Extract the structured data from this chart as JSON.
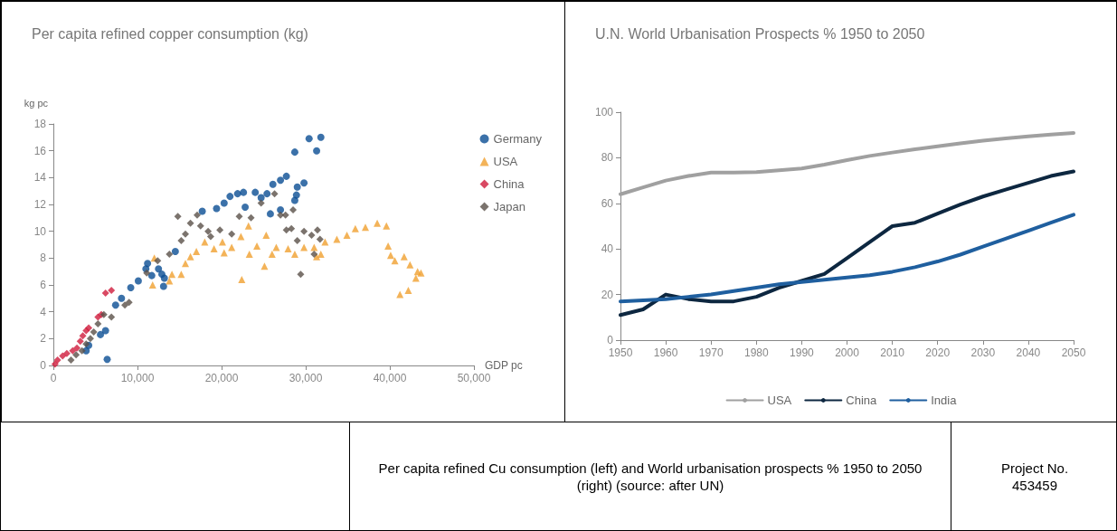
{
  "chart_data": [
    {
      "type": "scatter",
      "title": "Per capita refined copper consumption (kg)",
      "ylabel": "kg pc",
      "xlabel": "GDP pc",
      "xlim": [
        0,
        50000
      ],
      "xticks": [
        {
          "value": 0,
          "label": "0"
        },
        {
          "value": 10000,
          "label": "10,000"
        },
        {
          "value": 20000,
          "label": "20,000"
        },
        {
          "value": 30000,
          "label": "30,000"
        },
        {
          "value": 40000,
          "label": "40,000"
        },
        {
          "value": 50000,
          "label": "50,000"
        }
      ],
      "ylim": [
        0,
        18
      ],
      "yticks": [
        0,
        2,
        4,
        6,
        8,
        10,
        12,
        14,
        16,
        18
      ],
      "legend": "top right",
      "series": [
        {
          "name": "Germany",
          "color": "#0a4d94",
          "marker": "circle",
          "x": [
            3900,
            4200,
            6400,
            6200,
            5600,
            7400,
            8100,
            9200,
            10100,
            11000,
            11200,
            11700,
            12500,
            12900,
            13100,
            13200,
            14500,
            17700,
            19400,
            20300,
            21000,
            21900,
            22600,
            22800,
            24000,
            24700,
            25400,
            25800,
            26100,
            27000,
            27700,
            28700,
            29000,
            29800,
            28700,
            30400,
            31300,
            31800,
            28900,
            27000
          ],
          "values": [
            1.1,
            1.5,
            0.45,
            2.6,
            2.3,
            4.5,
            5.0,
            5.8,
            6.3,
            7.2,
            7.6,
            6.7,
            7.2,
            6.8,
            5.9,
            6.5,
            8.5,
            11.5,
            11.7,
            12.1,
            12.6,
            12.8,
            12.9,
            11.8,
            12.9,
            12.5,
            12.8,
            11.3,
            13.5,
            13.8,
            14.1,
            12.3,
            13.3,
            13.6,
            15.9,
            16.9,
            16.0,
            17.0,
            12.7,
            11.6
          ]
        },
        {
          "name": "USA",
          "color": "#f0a030",
          "marker": "triangle",
          "x": [
            11800,
            12000,
            13800,
            14100,
            15200,
            15700,
            16300,
            17000,
            18000,
            19100,
            20100,
            20300,
            21200,
            22300,
            22400,
            23200,
            23300,
            24200,
            25100,
            25300,
            26000,
            26500,
            27900,
            28700,
            29800,
            31000,
            31300,
            31800,
            32300,
            33700,
            34900,
            35900,
            37100,
            38500,
            39600,
            39800,
            40100,
            40600,
            41700,
            42400,
            43300,
            43700,
            43100,
            41200,
            42200
          ],
          "values": [
            6.0,
            8.0,
            6.3,
            6.8,
            6.8,
            7.6,
            8.1,
            8.5,
            9.2,
            8.7,
            9.2,
            8.4,
            8.8,
            9.6,
            6.4,
            10.4,
            8.3,
            8.9,
            7.4,
            9.7,
            8.3,
            8.8,
            8.7,
            8.3,
            8.8,
            8.8,
            8.1,
            8.3,
            9.2,
            9.4,
            9.7,
            10.2,
            10.3,
            10.6,
            10.4,
            8.9,
            8.2,
            7.8,
            8.1,
            7.5,
            7.0,
            6.9,
            6.5,
            5.3,
            5.6
          ]
        },
        {
          "name": "China",
          "color": "#d01c3c",
          "marker": "diamond",
          "x": [
            200,
            500,
            1100,
            1600,
            2300,
            2800,
            3200,
            3500,
            3900,
            4200,
            5300,
            5700,
            6200,
            6900
          ],
          "values": [
            0.1,
            0.4,
            0.7,
            0.9,
            1.1,
            1.3,
            1.8,
            2.2,
            2.6,
            2.8,
            3.6,
            3.8,
            5.4,
            5.6
          ]
        },
        {
          "name": "Japan",
          "color": "#5a5048",
          "marker": "diamond",
          "x": [
            2100,
            2700,
            3400,
            3900,
            4400,
            4800,
            5300,
            6000,
            6900,
            8500,
            9000,
            11100,
            12400,
            13800,
            14800,
            15200,
            15700,
            16300,
            17100,
            17500,
            18400,
            18700,
            19800,
            21200,
            22100,
            23500,
            24700,
            26300,
            27000,
            27700,
            27600,
            28300,
            28500,
            29000,
            29800,
            30700,
            31000,
            31400,
            31700,
            29400
          ],
          "values": [
            0.4,
            0.8,
            1.1,
            1.6,
            2.0,
            2.5,
            3.1,
            3.8,
            3.6,
            4.5,
            4.7,
            6.9,
            7.8,
            8.3,
            11.1,
            9.3,
            9.8,
            10.6,
            11.2,
            10.4,
            10.0,
            9.6,
            10.1,
            9.8,
            11.1,
            11.0,
            12.1,
            12.8,
            11.2,
            10.1,
            11.2,
            10.2,
            11.6,
            9.3,
            10.0,
            9.7,
            8.3,
            10.1,
            9.4,
            6.8
          ]
        }
      ]
    },
    {
      "type": "line",
      "title": "U.N. World Urbanisation Prospects % 1950 to 2050",
      "xlim": [
        1950,
        2050
      ],
      "xticks": [
        1950,
        1960,
        1970,
        1980,
        1990,
        2000,
        2010,
        2020,
        2030,
        2040,
        2050
      ],
      "ylim": [
        0,
        100
      ],
      "yticks": [
        0,
        20,
        40,
        60,
        80,
        100
      ],
      "legend": "bottom",
      "marker": "none",
      "line_style": "solid",
      "x": [
        1950,
        1955,
        1960,
        1965,
        1970,
        1975,
        1980,
        1985,
        1990,
        1995,
        2000,
        2005,
        2010,
        2015,
        2020,
        2025,
        2030,
        2035,
        2040,
        2045,
        2050
      ],
      "series": [
        {
          "name": "USA",
          "color": "#a0a0a0",
          "values": [
            64,
            67,
            70,
            72,
            73.5,
            73.5,
            73.7,
            74.5,
            75.3,
            77,
            79,
            80.8,
            82.3,
            83.7,
            85,
            86.3,
            87.5,
            88.5,
            89.4,
            90.2,
            90.9
          ]
        },
        {
          "name": "China",
          "color": "#0d2740",
          "values": [
            11,
            13.5,
            20,
            18,
            17,
            17,
            19,
            23,
            26,
            29,
            36,
            43,
            50,
            51.5,
            55.5,
            59.5,
            63,
            66,
            69,
            72,
            74
          ]
        },
        {
          "name": "India",
          "color": "#1f5f9f",
          "values": [
            17,
            17.5,
            18,
            19,
            20,
            21.5,
            23,
            24.5,
            25.5,
            26.5,
            27.5,
            28.5,
            30,
            32,
            34.5,
            37.5,
            41,
            44.5,
            48,
            51.5,
            55
          ]
        }
      ]
    },
    {
      "type": "other",
      "annotations": [
        "Per capita refined Cu consumption (left) and World urbanisation prospects % 1950 to 2050 (right) (source: after UN)",
        "Project No. 453459"
      ]
    }
  ]
}
